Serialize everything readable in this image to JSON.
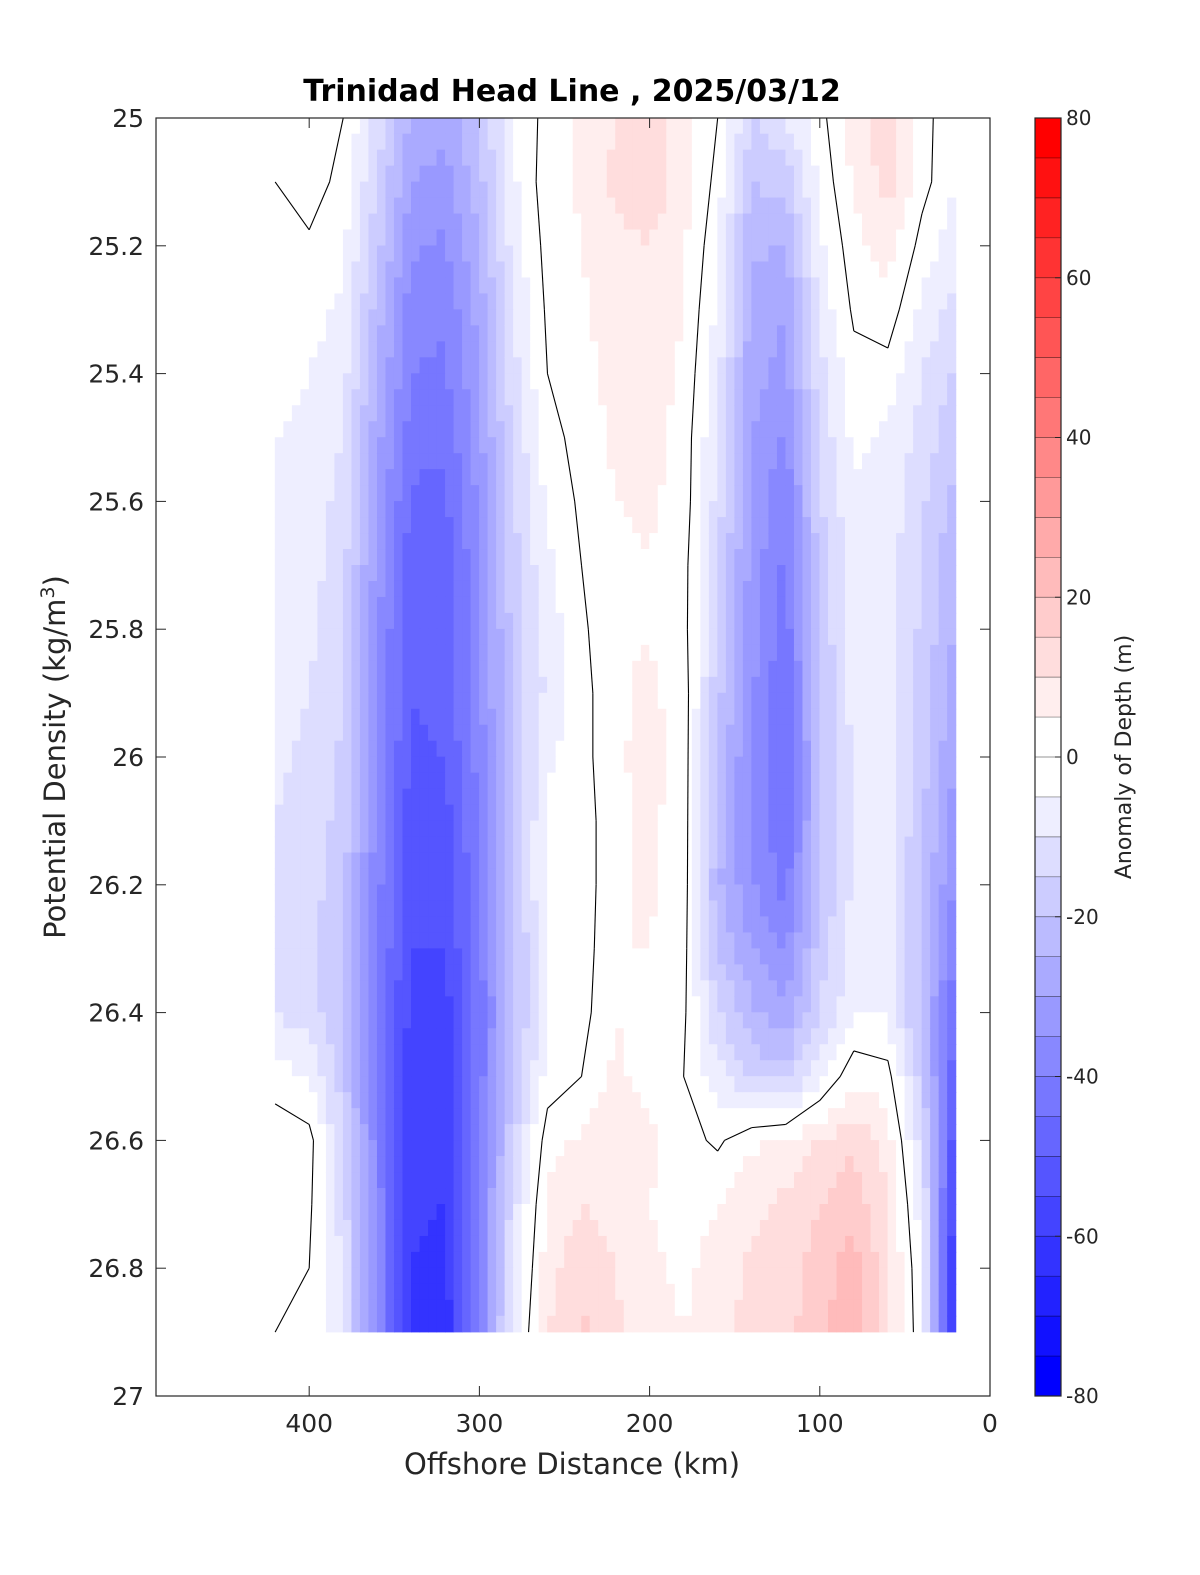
{
  "chart_data": {
    "type": "heatmap",
    "title": "Trinidad Head Line , 2025/03/12",
    "xlabel": "Offshore Distance (km)",
    "ylabel": "Potential Density (kg/m",
    "ylabel_superscript": "3",
    "ylabel_suffix": ")",
    "colorbar_label": "Anomaly of Depth (m)",
    "x_ticks": [
      "400",
      "300",
      "200",
      "100",
      "0"
    ],
    "x_tick_values": [
      400,
      300,
      200,
      100,
      0
    ],
    "y_ticks": [
      "25",
      "25.2",
      "25.4",
      "25.6",
      "25.8",
      "26",
      "26.2",
      "26.4",
      "26.6",
      "26.8",
      "27"
    ],
    "y_tick_values": [
      25,
      25.2,
      25.4,
      25.6,
      25.8,
      26,
      26.2,
      26.4,
      26.6,
      26.8,
      27
    ],
    "colorbar_ticks": [
      "80",
      "60",
      "40",
      "20",
      "0",
      "-20",
      "-40",
      "-60",
      "-80"
    ],
    "colorbar_tick_values": [
      80,
      60,
      40,
      20,
      0,
      -20,
      -40,
      -60,
      -80
    ],
    "xlim": [
      490,
      0
    ],
    "xaxis_reversed": true,
    "ylim": [
      25,
      27
    ],
    "yaxis_reversed": true,
    "clim": [
      -80,
      80
    ],
    "contour_interval": 5,
    "colormap": "blue-white-red",
    "colors": {
      "negative": "#0000ff",
      "zero": "#ffffff",
      "positive": "#ff0000",
      "contour_line": "#000000"
    },
    "data_extent": {
      "x": [
        420,
        20
      ],
      "y": [
        25,
        26.9
      ]
    },
    "x": [
      420,
      400,
      380,
      360,
      340,
      320,
      300,
      280,
      260,
      240,
      220,
      200,
      180,
      160,
      140,
      120,
      100,
      80,
      60,
      40,
      20
    ],
    "y": [
      25.0,
      25.1,
      25.2,
      25.3,
      25.4,
      25.5,
      25.6,
      25.7,
      25.8,
      25.9,
      26.0,
      26.1,
      26.2,
      26.3,
      26.4,
      26.5,
      26.6,
      26.7,
      26.8,
      26.9
    ],
    "values": [
      [
        0,
        4,
        0,
        -12,
        -25,
        -28,
        -20,
        -5,
        2,
        6,
        10,
        12,
        8,
        0,
        -15,
        -10,
        -2,
        8,
        14,
        2,
        -4
      ],
      [
        0,
        3,
        -2,
        -15,
        -30,
        -33,
        -22,
        -6,
        3,
        6,
        11,
        13,
        8,
        -2,
        -20,
        -18,
        -4,
        6,
        12,
        2,
        -5
      ],
      [
        -2,
        -1,
        -4,
        -18,
        -34,
        -36,
        -25,
        -8,
        2,
        5,
        9,
        10,
        6,
        -4,
        -24,
        -25,
        -6,
        3,
        8,
        -2,
        -8
      ],
      [
        -3,
        -3,
        -6,
        -22,
        -38,
        -39,
        -28,
        -10,
        1,
        4,
        8,
        9,
        5,
        -6,
        -27,
        -30,
        -9,
        1,
        3,
        -6,
        -12
      ],
      [
        -4,
        -5,
        -8,
        -25,
        -40,
        -41,
        -30,
        -12,
        0,
        3,
        7,
        8,
        4,
        -8,
        -28,
        -32,
        -12,
        -2,
        -2,
        -10,
        -16
      ],
      [
        -5,
        -6,
        -10,
        -28,
        -43,
        -44,
        -32,
        -14,
        -2,
        2,
        6,
        7,
        3,
        -10,
        -30,
        -36,
        -14,
        -4,
        -6,
        -12,
        -19
      ],
      [
        -6,
        -7,
        -12,
        -30,
        -46,
        -46,
        -34,
        -16,
        -4,
        1,
        5,
        6,
        3,
        -12,
        -31,
        -39,
        -16,
        -6,
        -7,
        -14,
        -22
      ],
      [
        -7,
        -8,
        -13,
        -32,
        -48,
        -49,
        -36,
        -17,
        -6,
        0,
        4,
        5,
        2,
        -14,
        -32,
        -41,
        -18,
        -7,
        -8,
        -15,
        -24
      ],
      [
        -7,
        -9,
        -14,
        -34,
        -50,
        -48,
        -37,
        -18,
        -8,
        -1,
        4,
        5,
        2,
        -16,
        -33,
        -43,
        -19,
        -8,
        -8,
        -16,
        -26
      ],
      [
        -8,
        -10,
        -15,
        -35,
        -50,
        -48,
        -37,
        -18,
        -9,
        -2,
        4,
        6,
        3,
        -18,
        -34,
        -45,
        -20,
        -8,
        -8,
        -17,
        -28
      ],
      [
        -9,
        -11,
        -16,
        -36,
        -51,
        -50,
        -38,
        -19,
        -6,
        -2,
        4,
        7,
        3,
        -20,
        -36,
        -46,
        -21,
        -9,
        -8,
        -18,
        -30
      ],
      [
        -10,
        -12,
        -17,
        -37,
        -53,
        -52,
        -40,
        -20,
        -4,
        -3,
        4,
        6,
        3,
        -22,
        -36,
        -45,
        -21,
        -9,
        -8,
        -19,
        -33
      ],
      [
        -11,
        -13,
        -18,
        -38,
        -54,
        -53,
        -41,
        -21,
        -3,
        -3,
        4,
        6,
        3,
        -24,
        -34,
        -42,
        -20,
        -9,
        -8,
        -20,
        -36
      ],
      [
        -12,
        -14,
        -19,
        -39,
        -55,
        -55,
        -42,
        -22,
        -4,
        -3,
        5,
        5,
        2,
        -20,
        -30,
        -36,
        -18,
        -8,
        -7,
        -21,
        -40
      ],
      [
        -10,
        -13,
        -20,
        -40,
        -57,
        -57,
        -43,
        -22,
        -5,
        -2,
        5,
        4,
        1,
        -14,
        -24,
        -28,
        -15,
        -6,
        -6,
        -22,
        -45
      ],
      [
        -3,
        -6,
        -18,
        -40,
        -58,
        -58,
        -43,
        -20,
        -3,
        0,
        6,
        3,
        0,
        -8,
        -16,
        -18,
        -6,
        4,
        2,
        -18,
        -50
      ],
      [
        4,
        2,
        -14,
        -38,
        -58,
        -59,
        -41,
        -16,
        3,
        6,
        9,
        6,
        2,
        -1,
        4,
        6,
        10,
        14,
        8,
        -12,
        -55
      ],
      [
        2,
        1,
        -12,
        -37,
        -59,
        -60,
        -40,
        -12,
        6,
        10,
        8,
        5,
        3,
        5,
        9,
        11,
        15,
        18,
        11,
        -8,
        -60
      ],
      [
        1,
        0,
        -11,
        -37,
        -60,
        -62,
        -40,
        -10,
        8,
        14,
        10,
        6,
        4,
        7,
        11,
        12,
        18,
        22,
        12,
        -5,
        -65
      ],
      [
        0,
        -1,
        -10,
        -37,
        -61,
        -64,
        -39,
        -8,
        10,
        16,
        11,
        7,
        5,
        8,
        12,
        13,
        19,
        23,
        12,
        -4,
        -68
      ]
    ]
  }
}
